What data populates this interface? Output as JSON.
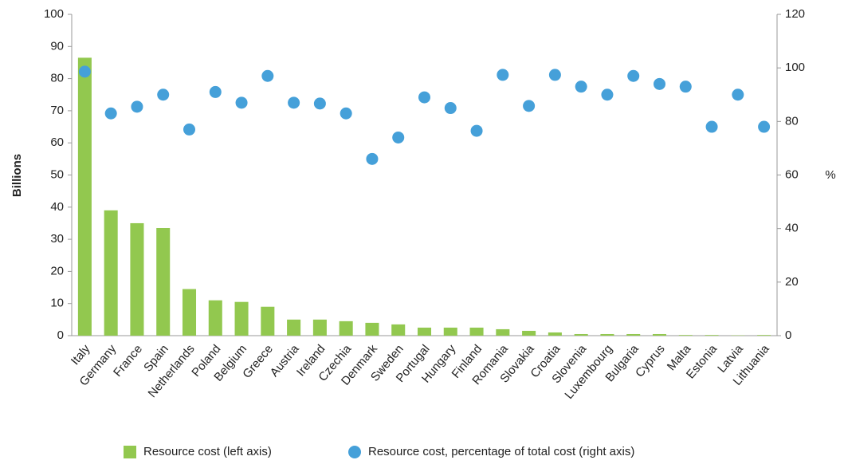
{
  "chart_data": {
    "type": "bar",
    "y_label": "Billions",
    "y2_label": "%",
    "categories": [
      "Italy",
      "Germany",
      "France",
      "Spain",
      "Netherlands",
      "Poland",
      "Belgium",
      "Greece",
      "Austria",
      "Ireland",
      "Czechia",
      "Denmark",
      "Sweden",
      "Portugal",
      "Hungary",
      "Finland",
      "Romania",
      "Slovakia",
      "Croatia",
      "Slovenia",
      "Luxembourg",
      "Bulgaria",
      "Cyprus",
      "Malta",
      "Estonia",
      "Latvia",
      "Lithuania"
    ],
    "series": [
      {
        "name": "Resource cost (left axis)",
        "type": "bar",
        "color": "#92c84f",
        "axis": "y",
        "values": [
          86.5,
          39,
          35,
          33.5,
          14.5,
          11,
          10.5,
          9,
          5,
          5,
          4.5,
          4,
          3.5,
          2.5,
          2.5,
          2.5,
          2,
          1.5,
          1,
          0.5,
          0.5,
          0.5,
          0.5,
          0.2,
          0.2,
          0.1,
          0.2
        ]
      },
      {
        "name": "Resource cost, percentage of total cost (right axis)",
        "type": "scatter",
        "color": "#45a0d9",
        "axis": "y2",
        "values": [
          98.6,
          83,
          85.5,
          90,
          77,
          91,
          87,
          97,
          87,
          86.7,
          83,
          66,
          74,
          89,
          85,
          76.5,
          97.4,
          85.8,
          97.4,
          93,
          90,
          97,
          94,
          93,
          78,
          90,
          78
        ]
      }
    ],
    "ylim": [
      0,
      100
    ],
    "yticks": [
      0,
      10,
      20,
      30,
      40,
      50,
      60,
      70,
      80,
      90,
      100
    ],
    "y2lim": [
      0,
      120
    ],
    "y2ticks": [
      0,
      20,
      40,
      60,
      80,
      100,
      120
    ],
    "grid": false
  }
}
